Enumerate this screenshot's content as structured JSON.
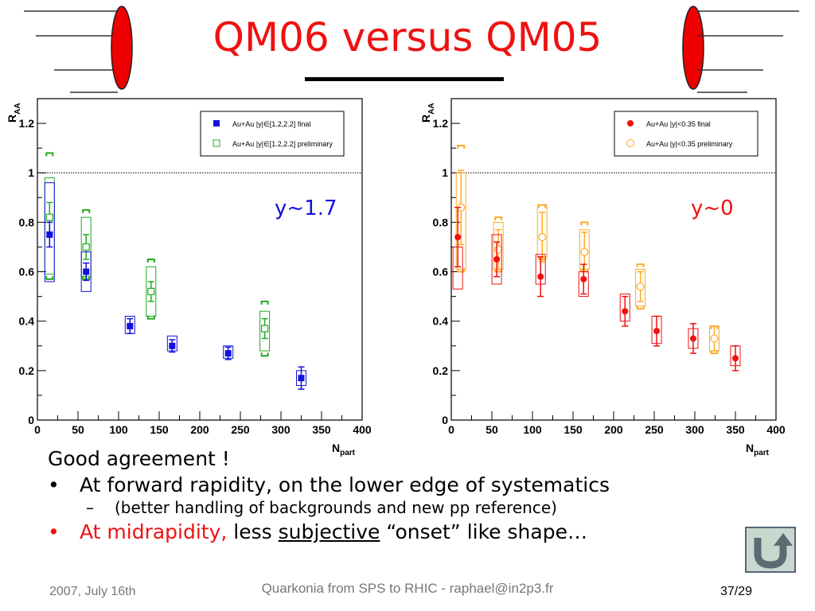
{
  "slide": {
    "title": "QM06 versus QM05",
    "bullets": {
      "line1": "Good agreement !",
      "b1": "At forward rapidity, on the lower edge of systematics",
      "sub1": "(better handling of backgrounds and new pp reference)",
      "b2_red": "At midrapidity,",
      "b2_a": " less ",
      "b2_ul": "subjective",
      "b2_b": " “onset” like shape…",
      "dot": "•",
      "dash": "–"
    },
    "footer": {
      "date": "2007, July 16th",
      "center": "Quarkonia from SPS to RHIC - raphael@in2p3.fr",
      "page": "37/29"
    },
    "nav_icon": "u-turn-arrow-icon"
  },
  "chart_data": [
    {
      "type": "scatter",
      "annotation": "y~1.7",
      "ylabel": "R",
      "ylabel_sub": "AA",
      "xlabel": "N",
      "xlabel_sub": "part",
      "xlim": [
        0,
        400
      ],
      "ylim": [
        0,
        1.3
      ],
      "xticks": [
        0,
        50,
        100,
        150,
        200,
        250,
        300,
        350,
        400
      ],
      "xtick_labels": [
        "0",
        "50",
        "100",
        "150",
        "200",
        "250",
        "300",
        "350",
        "400"
      ],
      "yticks": [
        0,
        0.2,
        0.4,
        0.6,
        0.8,
        1,
        1.2
      ],
      "ytick_labels": [
        "0",
        "0.2",
        "0.4",
        "0.6",
        "0.8",
        "1",
        "1.2"
      ],
      "reference_line": 1,
      "legend_position": "top-right",
      "colors": {
        "final": "#1111dd",
        "preliminary": "#22aa22",
        "annotation": "#1111dd"
      },
      "series": [
        {
          "name": "Au+Au |y|∈[1.2,2.2] final",
          "marker": "filled-square",
          "x": [
            15,
            60,
            114,
            166,
            235,
            325
          ],
          "y": [
            0.75,
            0.6,
            0.38,
            0.3,
            0.27,
            0.17
          ],
          "stat_err": [
            0.05,
            0.035,
            0.03,
            0.025,
            0.025,
            0.045
          ],
          "syst_lo": [
            0.56,
            0.52,
            0.35,
            0.28,
            0.25,
            0.14
          ],
          "syst_hi": [
            0.96,
            0.68,
            0.42,
            0.34,
            0.3,
            0.2
          ]
        },
        {
          "name": "Au+Au |y|∈[1.2,2.2] preliminary",
          "marker": "open-square",
          "x": [
            15,
            60,
            140,
            280
          ],
          "y": [
            0.82,
            0.7,
            0.52,
            0.37
          ],
          "stat_err": [
            0.06,
            0.05,
            0.04,
            0.04
          ],
          "syst_lo": [
            0.59,
            0.58,
            0.42,
            0.28
          ],
          "syst_hi": [
            0.98,
            0.82,
            0.62,
            0.44
          ],
          "global_lo": [
            0.57,
            0.57,
            0.41,
            0.26
          ],
          "global_hi": [
            1.08,
            0.85,
            0.65,
            0.48
          ]
        }
      ]
    },
    {
      "type": "scatter",
      "annotation": "y~0",
      "ylabel": "R",
      "ylabel_sub": "AA",
      "xlabel": "N",
      "xlabel_sub": "part",
      "xlim": [
        0,
        400
      ],
      "ylim": [
        0,
        1.3
      ],
      "xticks": [
        0,
        50,
        100,
        150,
        200,
        250,
        300,
        350,
        400
      ],
      "xtick_labels": [
        "0",
        "50",
        "100",
        "150",
        "200",
        "250",
        "300",
        "350",
        "400"
      ],
      "yticks": [
        0,
        0.2,
        0.4,
        0.6,
        0.8,
        1,
        1.2
      ],
      "ytick_labels": [
        "0",
        "0.2",
        "0.4",
        "0.6",
        "0.8",
        "1",
        "1.2"
      ],
      "reference_line": 1,
      "legend_position": "top-right",
      "colors": {
        "final": "#ee1111",
        "preliminary": "#ffaa22",
        "annotation": "#ee1111"
      },
      "series": [
        {
          "name": "Au+Au |y|<0.35 final",
          "marker": "filled-circle",
          "x": [
            8,
            56,
            110,
            163,
            214,
            253,
            298,
            350
          ],
          "y": [
            0.74,
            0.65,
            0.58,
            0.57,
            0.44,
            0.36,
            0.33,
            0.25
          ],
          "stat_err": [
            0.12,
            0.07,
            0.08,
            0.06,
            0.06,
            0.06,
            0.06,
            0.05
          ],
          "syst_lo": [
            0.53,
            0.55,
            0.55,
            0.5,
            0.4,
            0.31,
            0.29,
            0.22
          ],
          "syst_hi": [
            0.7,
            0.75,
            0.67,
            0.6,
            0.51,
            0.42,
            0.37,
            0.3
          ]
        },
        {
          "name": "Au+Au |y|<0.35 preliminary",
          "marker": "open-circle",
          "x": [
            12,
            58,
            112,
            164,
            233,
            324
          ],
          "y": [
            0.86,
            0.69,
            0.74,
            0.68,
            0.54,
            0.33
          ],
          "stat_err": [
            0.15,
            0.08,
            0.1,
            0.08,
            0.06,
            0.05
          ],
          "syst_lo": [
            0.61,
            0.61,
            0.66,
            0.61,
            0.46,
            0.28
          ],
          "syst_hi": [
            1.0,
            0.8,
            0.87,
            0.77,
            0.61,
            0.38
          ],
          "global_lo": [
            0.6,
            0.6,
            0.65,
            0.6,
            0.45,
            0.27
          ],
          "global_hi": [
            1.11,
            0.82,
            0.87,
            0.8,
            0.63,
            0.38
          ]
        }
      ]
    }
  ]
}
